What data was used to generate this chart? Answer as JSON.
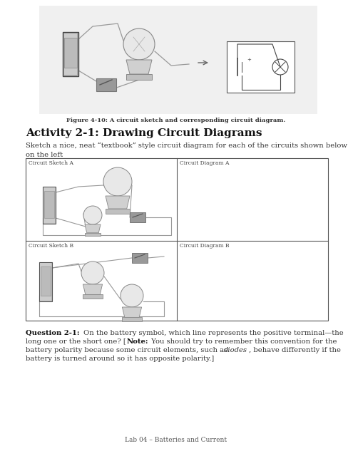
{
  "bg_color": "#ffffff",
  "page_width": 4.95,
  "page_height": 6.4,
  "dpi": 100,
  "fig4_caption": "Figure 4-10: A circuit sketch and corresponding circuit diagram.",
  "activity_title": "Activity 2-1: Drawing Circuit Diagrams",
  "activity_body": "Sketch a nice, neat “textbook” style circuit diagram for each of the circuits shown below\non the left",
  "cell_labels": [
    "Circuit Sketch A",
    "Circuit Diagram A",
    "Circuit Sketch B",
    "Circuit Diagram B"
  ],
  "q2_1_text": "Question 2-1: On the battery symbol, which line represents the positive terminal—the long one or the short one? [Note: You should try to remember this convention for the battery polarity because some circuit elements, such as diodes, behave differently if the battery is turned around so it has opposite polarity.]",
  "footer": "Lab 04 – Batteries and Current"
}
